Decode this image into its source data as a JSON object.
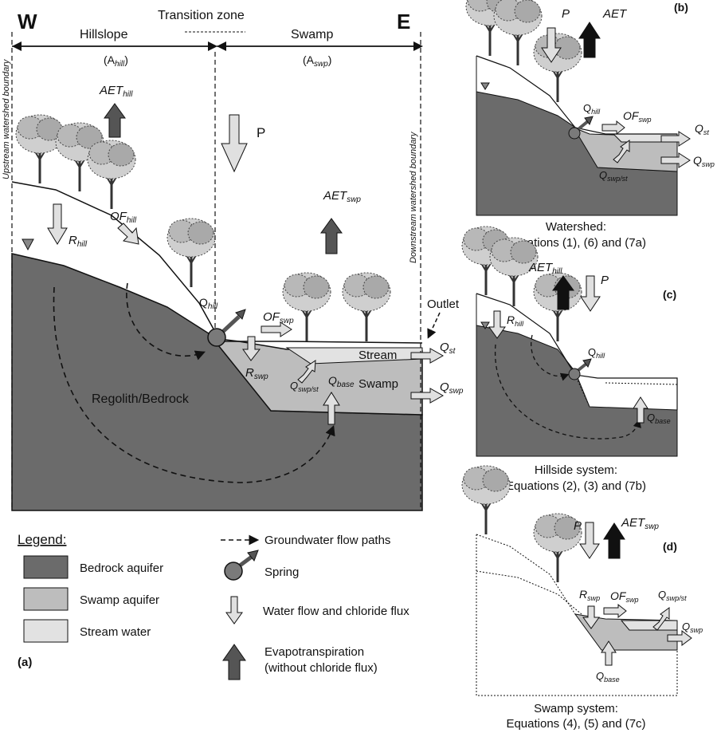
{
  "colors": {
    "bedrock": "#6b6b6b",
    "swamp_aquifer": "#bdbdbd",
    "stream_water": "#e2e2e2",
    "arrow_light": "#e0e0e0",
    "arrow_dark": "#555555",
    "et_black": "#111111"
  },
  "main": {
    "west": "W",
    "east": "E",
    "hillslope": "Hillslope",
    "transition": "Transition zone",
    "swamp": "Swamp",
    "a_hill_pre": "(A",
    "a_hill_sub": "hill",
    "a_hill_post": ")",
    "a_swp_pre": "(A",
    "a_swp_sub": "swp",
    "a_swp_post": ")",
    "upstream_boundary": "Upstream watershed boundary",
    "downstream_boundary": "Downstream watershed boundary",
    "aet_hill": "AET",
    "aet_hill_sub": "hill",
    "p": "P",
    "aet_swp": "AET",
    "aet_swp_sub": "swp",
    "r_hill": "R",
    "r_hill_sub": "hill",
    "of_hill": "OF",
    "of_hill_sub": "hill",
    "q_hill": "Q",
    "q_hill_sub": "hill",
    "of_swp": "OF",
    "of_swp_sub": "swp",
    "r_swp": "R",
    "r_swp_sub": "swp",
    "q_swpst": "Q",
    "q_swpst_sub": "swp/st",
    "q_base": "Q",
    "q_base_sub": "base",
    "stream": "Stream",
    "swamp_label": "Swamp",
    "outlet": "Outlet",
    "q_st": "Q",
    "q_st_sub": "st",
    "q_swp": "Q",
    "q_swp_sub": "swp",
    "regolith": "Regolith/Bedrock",
    "panel": "(a)"
  },
  "legend": {
    "title": "Legend:",
    "bedrock": "Bedrock aquifer",
    "swamp": "Swamp aquifer",
    "stream": "Stream water",
    "gw": "Groundwater flow paths",
    "spring": "Spring",
    "water_flow": "Water flow and chloride flux",
    "et_line1": "Evapotranspiration",
    "et_line2": "(without chloride flux)"
  },
  "panel_b": {
    "label": "(b)",
    "p": "P",
    "aet": "AET",
    "q_hill": "Q",
    "q_hill_sub": "hill",
    "of_swp": "OF",
    "of_swp_sub": "swp",
    "q_st": "Q",
    "q_st_sub": "st",
    "q_swp": "Q",
    "q_swp_sub": "swp",
    "q_swpst": "Q",
    "q_swpst_sub": "swp/st",
    "caption1": "Watershed:",
    "caption2": "Equations (1), (6) and (7a)"
  },
  "panel_c": {
    "label": "(c)",
    "aet": "AET",
    "aet_sub": "hill",
    "p": "P",
    "r_hill": "R",
    "r_hill_sub": "hill",
    "q_hill": "Q",
    "q_hill_sub": "hill",
    "q_base": "Q",
    "q_base_sub": "base",
    "caption1": "Hillside system:",
    "caption2": "Equations (2), (3) and (7b)"
  },
  "panel_d": {
    "label": "(d)",
    "p": "P",
    "aet": "AET",
    "aet_sub": "swp",
    "r_swp": "R",
    "r_swp_sub": "swp",
    "of_swp": "OF",
    "of_swp_sub": "swp",
    "q_swpst": "Q",
    "q_swpst_sub": "swp/st",
    "q_swp": "Q",
    "q_swp_sub": "swp",
    "q_base": "Q",
    "q_base_sub": "base",
    "caption1": "Swamp system:",
    "caption2": "Equations (4), (5) and (7c)"
  }
}
